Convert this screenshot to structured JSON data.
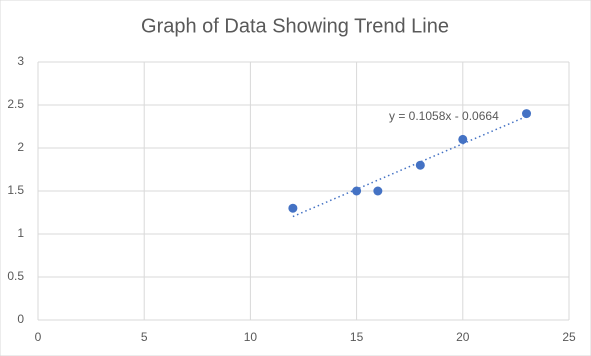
{
  "chart_data": {
    "type": "scatter",
    "title": "Graph of Data Showing Trend Line",
    "series": [
      {
        "color": "#4472c4",
        "x": [
          12,
          15,
          16,
          18,
          20,
          23
        ],
        "values": [
          1.3,
          1.5,
          1.5,
          1.8,
          2.1,
          2.4
        ]
      }
    ],
    "trendline": {
      "slope": 0.1058,
      "intercept": -0.0664,
      "label": "y = 0.1058x - 0.0664",
      "color": "#4472c4"
    },
    "xlim": [
      0,
      25
    ],
    "xticks": [
      0,
      5,
      10,
      15,
      20,
      25
    ],
    "ylim": [
      0,
      3
    ],
    "yticks": [
      0,
      0.5,
      1,
      1.5,
      2,
      2.5,
      3
    ],
    "grid": true
  }
}
